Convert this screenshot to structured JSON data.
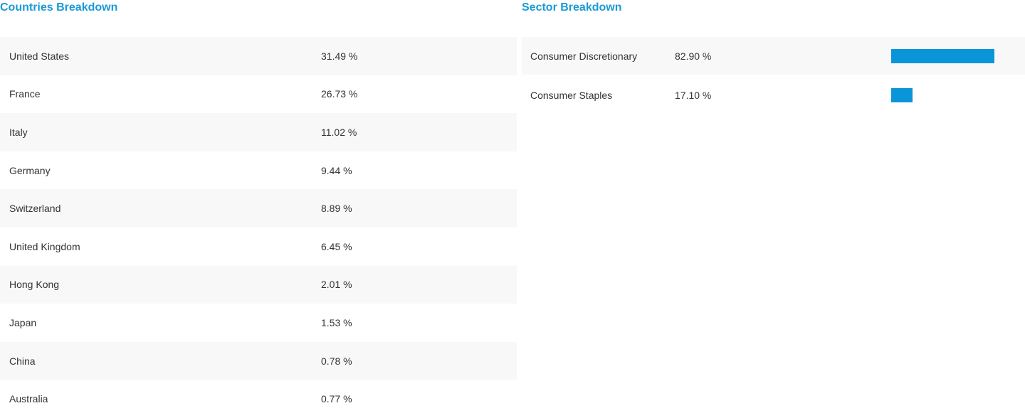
{
  "countries": {
    "title": "Countries Breakdown",
    "rows": [
      {
        "name": "United States",
        "pct": "31.49 %"
      },
      {
        "name": "France",
        "pct": "26.73 %"
      },
      {
        "name": "Italy",
        "pct": "11.02 %"
      },
      {
        "name": "Germany",
        "pct": "9.44 %"
      },
      {
        "name": "Switzerland",
        "pct": "8.89 %"
      },
      {
        "name": "United Kingdom",
        "pct": "6.45 %"
      },
      {
        "name": "Hong Kong",
        "pct": "2.01 %"
      },
      {
        "name": "Japan",
        "pct": "1.53 %"
      },
      {
        "name": "China",
        "pct": "0.78 %"
      },
      {
        "name": "Australia",
        "pct": "0.77 %"
      }
    ]
  },
  "sectors": {
    "title": "Sector Breakdown",
    "bar_color": "#0b95d9",
    "rows": [
      {
        "name": "Consumer Discretionary",
        "pct": "82.90 %",
        "value": 82.9
      },
      {
        "name": "Consumer Staples",
        "pct": "17.10 %",
        "value": 17.1
      }
    ]
  },
  "colors": {
    "title": "#1a9ad6",
    "row_alt": "#f8f8f8",
    "text": "#333333"
  }
}
